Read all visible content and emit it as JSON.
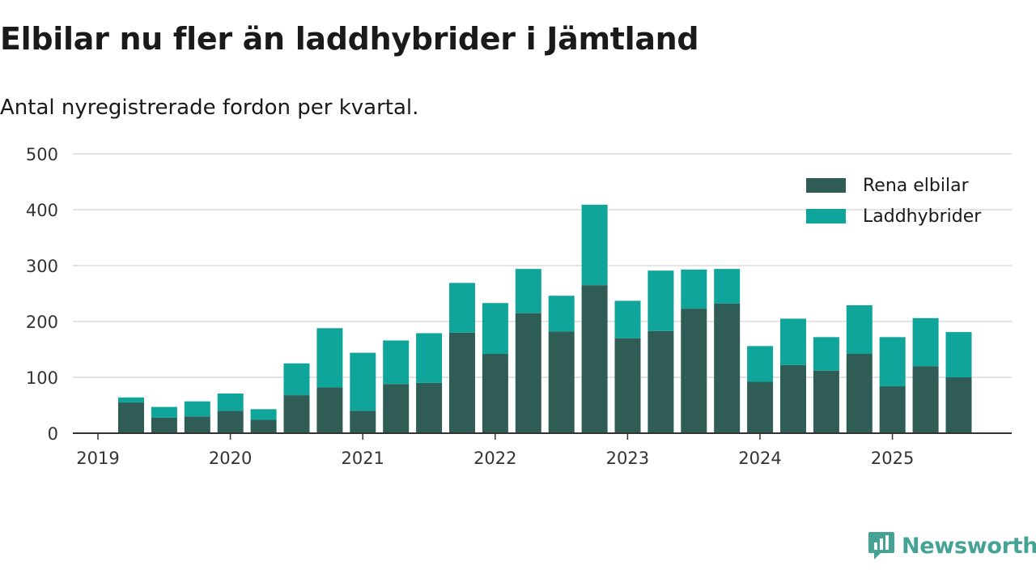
{
  "header": {
    "title": "Elbilar nu fler än laddhybrider i Jämtland",
    "subtitle": "Antal nyregistrerade fordon per kvartal."
  },
  "brand": {
    "name": "Newsworthy",
    "color": "#44a395"
  },
  "chart_data": {
    "type": "bar",
    "stacked": true,
    "title": "Elbilar nu fler än laddhybrider i Jämtland",
    "subtitle": "Antal nyregistrerade fordon per kvartal.",
    "categories": [
      "2019 Q2",
      "2019 Q3",
      "2019 Q4",
      "2020 Q1",
      "2020 Q2",
      "2020 Q3",
      "2020 Q4",
      "2021 Q1",
      "2021 Q2",
      "2021 Q3",
      "2021 Q4",
      "2022 Q1",
      "2022 Q2",
      "2022 Q3",
      "2022 Q4",
      "2023 Q1",
      "2023 Q2",
      "2023 Q3",
      "2023 Q4",
      "2024 Q1",
      "2024 Q2",
      "2024 Q3",
      "2024 Q4",
      "2025 Q1",
      "2025 Q2",
      "2025 Q3"
    ],
    "series": [
      {
        "name": "Rena elbilar",
        "color": "#2f5d56",
        "values": [
          55,
          28,
          30,
          40,
          24,
          68,
          82,
          40,
          88,
          90,
          180,
          142,
          215,
          182,
          265,
          170,
          183,
          223,
          232,
          92,
          122,
          112,
          142,
          84,
          120,
          100
        ]
      },
      {
        "name": "Laddhybrider",
        "color": "#0fa59a",
        "values": [
          9,
          19,
          27,
          31,
          19,
          57,
          106,
          104,
          78,
          89,
          89,
          91,
          79,
          64,
          144,
          67,
          108,
          70,
          62,
          64,
          83,
          60,
          87,
          88,
          86,
          81
        ]
      }
    ],
    "x_ticks": [
      "2019",
      "2020",
      "2021",
      "2022",
      "2023",
      "2024",
      "2025"
    ],
    "y_ticks": [
      "0",
      "100",
      "200",
      "300",
      "400",
      "500"
    ],
    "ylim": [
      0,
      500
    ],
    "xlabel": "",
    "ylabel": "",
    "grid": true,
    "legend_position": "top-right"
  }
}
